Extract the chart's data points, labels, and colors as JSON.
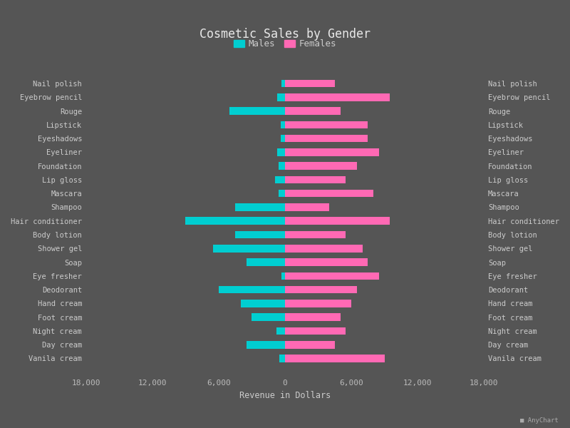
{
  "title": "Cosmetic Sales by Gender",
  "xlabel": "Revenue in Dollars",
  "background_color": "#555555",
  "male_color": "#00ced1",
  "female_color": "#ff69b4",
  "title_color": "#e8e8e8",
  "label_color": "#cccccc",
  "tick_color": "#bbbbbb",
  "categories": [
    "Nail polish",
    "Eyebrow pencil",
    "Rouge",
    "Lipstick",
    "Eyeshadows",
    "Eyeliner",
    "Foundation",
    "Lip gloss",
    "Mascara",
    "Shampoo",
    "Hair conditioner",
    "Body lotion",
    "Shower gel",
    "Soap",
    "Eye fresher",
    "Deodorant",
    "Hand cream",
    "Foot cream",
    "Night cream",
    "Day cream",
    "Vanila cream"
  ],
  "males": [
    -300,
    -700,
    -5000,
    -400,
    -400,
    -700,
    -600,
    -900,
    -600,
    -4500,
    -9000,
    -4500,
    -6500,
    -3500,
    -300,
    -6000,
    -4000,
    -3000,
    -800,
    -3500,
    -500
  ],
  "females": [
    4500,
    9500,
    5000,
    7500,
    7500,
    8500,
    6500,
    5500,
    8000,
    4000,
    9500,
    5500,
    7000,
    7500,
    8500,
    6500,
    6000,
    5000,
    5500,
    4500,
    9000
  ],
  "xlim": [
    -18000,
    18000
  ],
  "xticks": [
    -18000,
    -12000,
    -6000,
    0,
    6000,
    12000,
    18000
  ],
  "xtick_labels": [
    "18,000",
    "12,000",
    "6,000",
    "0",
    "6,000",
    "12,000",
    "18,000"
  ],
  "figsize": [
    8.0,
    6.0
  ],
  "dpi": 100
}
